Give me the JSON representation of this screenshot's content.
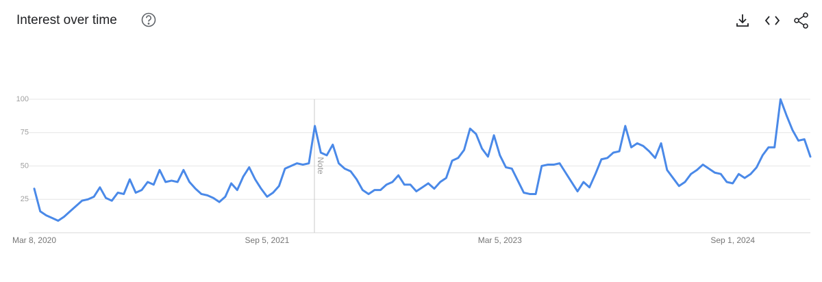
{
  "chart_data": {
    "type": "line",
    "title": "Interest over time",
    "annotation": "Note",
    "categories": [
      "Mar 8, 2020",
      null,
      null,
      null,
      null,
      null,
      null,
      null,
      null,
      null,
      null,
      null,
      null,
      null,
      null,
      null,
      null,
      null,
      null,
      null,
      null,
      null,
      null,
      null,
      null,
      null,
      null,
      null,
      null,
      null,
      null,
      null,
      null,
      null,
      null,
      null,
      null,
      null,
      null,
      "Sep 5, 2021",
      null,
      null,
      null,
      null,
      null,
      null,
      null,
      null,
      null,
      null,
      null,
      null,
      null,
      null,
      null,
      null,
      null,
      null,
      null,
      null,
      null,
      null,
      null,
      null,
      null,
      null,
      null,
      null,
      null,
      null,
      null,
      null,
      null,
      null,
      null,
      null,
      null,
      null,
      "Mar 5, 2023",
      null,
      null,
      null,
      null,
      null,
      null,
      null,
      null,
      null,
      null,
      null,
      null,
      null,
      null,
      null,
      null,
      null,
      null,
      null,
      null,
      null,
      null,
      null,
      null,
      null,
      null,
      null,
      null,
      null,
      null,
      null,
      null,
      null,
      null,
      null,
      null,
      null,
      null,
      "Sep 1, 2024",
      null,
      null,
      null,
      null,
      null,
      null,
      null,
      null,
      null,
      null,
      null,
      null,
      null
    ],
    "values": [
      33,
      16,
      13,
      11,
      9,
      12,
      16,
      20,
      24,
      25,
      27,
      34,
      26,
      24,
      30,
      29,
      40,
      30,
      32,
      38,
      36,
      47,
      38,
      39,
      38,
      47,
      38,
      33,
      29,
      28,
      26,
      23,
      27,
      37,
      32,
      42,
      49,
      40,
      33,
      27,
      30,
      35,
      48,
      50,
      52,
      51,
      52,
      80,
      60,
      58,
      66,
      52,
      48,
      46,
      40,
      32,
      29,
      32,
      32,
      36,
      38,
      43,
      36,
      36,
      31,
      34,
      37,
      33,
      38,
      41,
      54,
      56,
      62,
      78,
      74,
      63,
      57,
      73,
      58,
      49,
      48,
      39,
      30,
      29,
      29,
      50,
      51,
      51,
      52,
      45,
      38,
      31,
      38,
      34,
      44,
      55,
      56,
      60,
      61,
      80,
      64,
      67,
      65,
      61,
      56,
      67,
      47,
      41,
      35,
      38,
      44,
      47,
      51,
      48,
      45,
      44,
      38,
      37,
      44,
      41,
      44,
      49,
      58,
      64,
      64,
      100,
      88,
      77,
      69,
      70,
      57
    ],
    "color": "#4a89e8",
    "ylim": [
      0,
      100
    ],
    "yticks": [
      25,
      50,
      75,
      100
    ],
    "grid": true
  }
}
